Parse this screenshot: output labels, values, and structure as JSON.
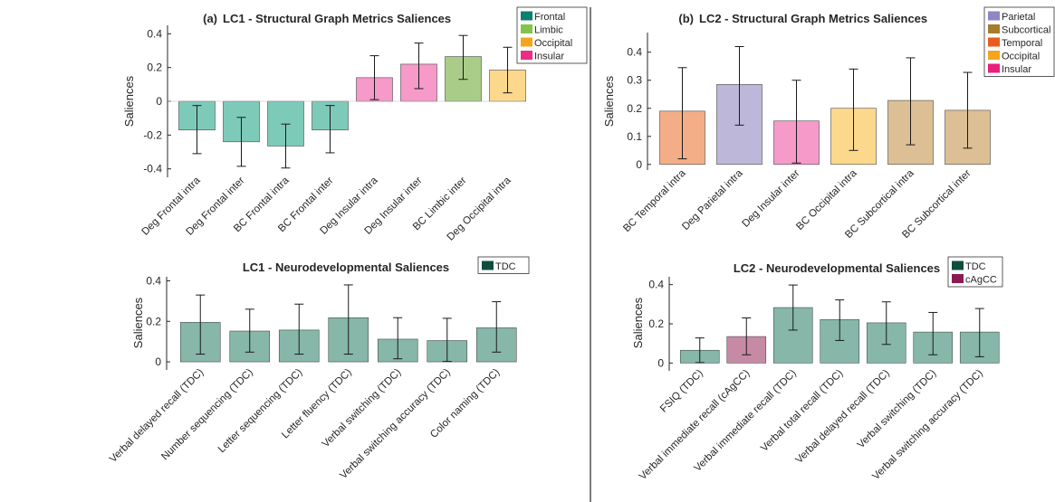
{
  "chart_data": [
    {
      "type": "bar",
      "panel": "(a)",
      "title": "LC1 - Structural Graph Metrics Saliences",
      "ylabel": "Saliences",
      "xlabel": "",
      "ylim": [
        -0.45,
        0.45
      ],
      "yticks": [
        -0.4,
        -0.2,
        0,
        0.2,
        0.4
      ],
      "grid": false,
      "legend_position": "top-right",
      "legend": [
        {
          "label": "Frontal",
          "color": "#0d8070"
        },
        {
          "label": "Limbic",
          "color": "#82c44a"
        },
        {
          "label": "Occipital",
          "color": "#f4a51c"
        },
        {
          "label": "Insular",
          "color": "#ea2e86"
        }
      ],
      "categories": [
        "Deg Frontal intra",
        "Deg Frontal inter",
        "BC Frontal intra",
        "BC Frontal inter",
        "Deg Insular intra",
        "Deg Insular inter",
        "BC Limbic inter",
        "Deg Occipital intra"
      ],
      "values": [
        -0.17,
        -0.24,
        -0.265,
        -0.17,
        0.14,
        0.22,
        0.265,
        0.185
      ],
      "error_low": [
        -0.31,
        -0.385,
        -0.395,
        -0.305,
        0.01,
        0.075,
        0.13,
        0.05
      ],
      "error_high": [
        -0.025,
        -0.095,
        -0.135,
        -0.025,
        0.27,
        0.345,
        0.39,
        0.32
      ],
      "colors": [
        "#7ecab9",
        "#7ecab9",
        "#7ecab9",
        "#7ecab9",
        "#f59ac9",
        "#f59ac9",
        "#a9cd88",
        "#fcd88c"
      ]
    },
    {
      "type": "bar",
      "panel": "(b)",
      "title": "LC2 - Structural Graph Metrics Saliences",
      "ylabel": "Saliences",
      "xlabel": "",
      "ylim": [
        -0.02,
        0.47
      ],
      "yticks": [
        0,
        0.1,
        0.2,
        0.3,
        0.4
      ],
      "grid": false,
      "legend_position": "top-right",
      "legend": [
        {
          "label": "Parietal",
          "color": "#8f86c3"
        },
        {
          "label": "Subcortical",
          "color": "#a57c2d"
        },
        {
          "label": "Temporal",
          "color": "#e85d1e"
        },
        {
          "label": "Occipital",
          "color": "#f4a51c"
        },
        {
          "label": "Insular",
          "color": "#ea1f7b"
        }
      ],
      "categories": [
        "BC Temporal intra",
        "Deg Parietal intra",
        "Deg Insular inter",
        "BC Occipital intra",
        "BC Subcortical intra",
        "BC Subcortical inter"
      ],
      "values": [
        0.19,
        0.285,
        0.155,
        0.2,
        0.228,
        0.193
      ],
      "error_low": [
        0.02,
        0.14,
        0.005,
        0.05,
        0.07,
        0.058
      ],
      "error_high": [
        0.345,
        0.42,
        0.3,
        0.34,
        0.38,
        0.328
      ],
      "colors": [
        "#f4ae87",
        "#bdb8d9",
        "#f59ac9",
        "#fcd88c",
        "#dcbf94",
        "#dcbf94"
      ]
    },
    {
      "type": "bar",
      "panel": "",
      "title": "LC1 - Neurodevelopmental Saliences",
      "ylabel": "Saliences",
      "xlabel": "",
      "ylim": [
        -0.04,
        0.42
      ],
      "yticks": [
        0,
        0.2,
        0.4
      ],
      "grid": false,
      "legend_position": "top-right",
      "legend": [
        {
          "label": "TDC",
          "color": "#0f4d3d"
        }
      ],
      "categories": [
        "Verbal delayed recall (TDC)",
        "Number sequencing (TDC)",
        "Letter sequencing (TDC)",
        "Letter fluency (TDC)",
        "Verbal switching (TDC)",
        "Verbal switching accuracy (TDC)",
        "Color naming (TDC)"
      ],
      "values": [
        0.195,
        0.152,
        0.157,
        0.218,
        0.112,
        0.105,
        0.168
      ],
      "error_low": [
        0.038,
        0.048,
        0.038,
        0.038,
        0.015,
        0.002,
        0.048
      ],
      "error_high": [
        0.33,
        0.26,
        0.285,
        0.38,
        0.218,
        0.215,
        0.297
      ],
      "colors": [
        "#86b7a9",
        "#86b7a9",
        "#86b7a9",
        "#86b7a9",
        "#86b7a9",
        "#86b7a9",
        "#86b7a9"
      ]
    },
    {
      "type": "bar",
      "panel": "",
      "title": "LC2 - Neurodevelopmental Saliences",
      "ylabel": "Saliences",
      "xlabel": "",
      "ylim": [
        -0.04,
        0.44
      ],
      "yticks": [
        0,
        0.2,
        0.4
      ],
      "grid": false,
      "legend_position": "top-right",
      "legend": [
        {
          "label": "TDC",
          "color": "#0f4d3d"
        },
        {
          "label": "cAgCC",
          "color": "#8c1a52"
        }
      ],
      "categories": [
        "FSIQ (TDC)",
        "Verbal immediate recall (cAgCC)",
        "Verbal immediate recall (TDC)",
        "Verbal total recall  (TDC)",
        "Verbal delayed recall (TDC)",
        "Verbal switching (TDC)",
        "Verbal switching accuracy (TDC)"
      ],
      "values": [
        0.065,
        0.135,
        0.283,
        0.222,
        0.205,
        0.158,
        0.158
      ],
      "error_low": [
        0.002,
        0.042,
        0.168,
        0.115,
        0.095,
        0.042,
        0.032
      ],
      "error_high": [
        0.128,
        0.23,
        0.398,
        0.322,
        0.312,
        0.258,
        0.278
      ],
      "colors": [
        "#86b7a9",
        "#c78aa5",
        "#86b7a9",
        "#86b7a9",
        "#86b7a9",
        "#86b7a9",
        "#86b7a9"
      ]
    }
  ]
}
